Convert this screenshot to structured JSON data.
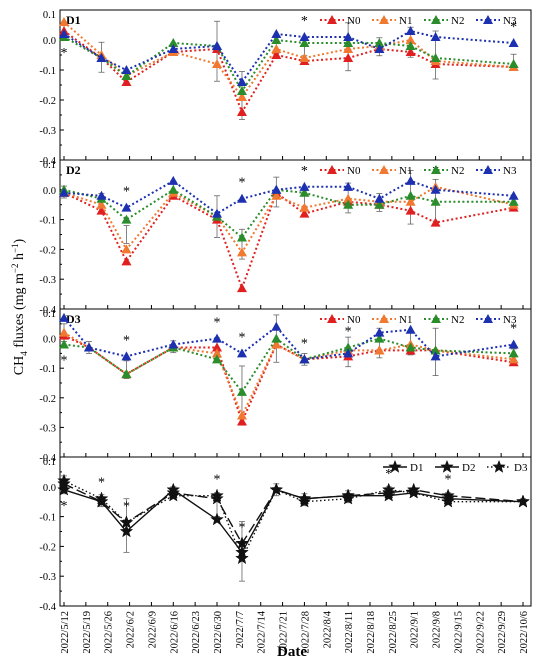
{
  "figure": {
    "ylabel": "CH$_4$ fluxes (mg m$^{-2}$ h$^{-1}$)",
    "ylabel_parts": {
      "pre": "CH",
      "sub": "4",
      "mid": " fluxes (mg m",
      "sup1": "−2",
      "mid2": " h",
      "sup2": "−1",
      "post": ")"
    },
    "xlabel": "Date",
    "dates": [
      "2022/5/12",
      "2022/5/19",
      "2022/5/26",
      "2022/6/2",
      "2022/6/9",
      "2022/6/16",
      "2022/6/23",
      "2022/6/30",
      "2022/7/7",
      "2022/7/14",
      "2022/7/21",
      "2022/7/28",
      "2022/8/4",
      "2022/8/11",
      "2022/8/18",
      "2022/8/25",
      "2022/9/1",
      "2022/9/8",
      "2022/9/15",
      "2022/9/22",
      "2022/9/29",
      "2022/10/6"
    ]
  },
  "chart_data": [
    {
      "type": "line",
      "panel": "D1",
      "ylim": [
        -0.4,
        0.1
      ],
      "yticks": [
        "0.1",
        "0.0",
        "-0.1",
        "-0.2",
        "-0.3",
        "-0.4"
      ],
      "sample_dates": [
        "2022/5/12",
        "2022/5/24",
        "2022/6/1",
        "2022/6/16",
        "2022/6/30",
        "2022/7/8",
        "2022/7/19",
        "2022/7/28",
        "2022/8/11",
        "2022/8/21",
        "2022/8/31",
        "2022/9/8",
        "2022/10/3"
      ],
      "series": [
        {
          "name": "N0",
          "color": "#e02020",
          "values": [
            0.03,
            -0.06,
            -0.14,
            -0.04,
            -0.03,
            -0.24,
            -0.05,
            -0.07,
            -0.06,
            -0.03,
            -0.04,
            -0.08,
            -0.09
          ]
        },
        {
          "name": "N1",
          "color": "#f07830",
          "values": [
            0.06,
            -0.05,
            -0.12,
            -0.04,
            -0.08,
            -0.19,
            -0.03,
            -0.06,
            -0.03,
            -0.02,
            0.0,
            -0.07,
            -0.09
          ]
        },
        {
          "name": "N2",
          "color": "#2a8c2a",
          "values": [
            0.01,
            -0.06,
            -0.12,
            -0.01,
            -0.02,
            -0.17,
            0.0,
            -0.01,
            -0.01,
            -0.01,
            -0.02,
            -0.06,
            -0.08
          ]
        },
        {
          "name": "N3",
          "color": "#1c30b0",
          "values": [
            0.02,
            -0.06,
            -0.1,
            -0.03,
            -0.02,
            -0.14,
            0.02,
            0.01,
            0.01,
            -0.03,
            0.03,
            0.01,
            -0.01
          ]
        }
      ],
      "errors": [
        0.03,
        0.05,
        0.02,
        0.02,
        0.1,
        0.08,
        0.03,
        0.02,
        0.08,
        0.03,
        0.05,
        0.08,
        0.02
      ],
      "asterisks": [
        {
          "date": "2022/5/12",
          "pos": "below"
        },
        {
          "date": "2022/7/28",
          "pos": "above"
        },
        {
          "date": "2022/10/3",
          "pos": "above"
        }
      ]
    },
    {
      "type": "line",
      "panel": "D2",
      "ylim": [
        -0.4,
        0.1
      ],
      "yticks": [
        "0.1",
        "0.0",
        "-0.1",
        "-0.2",
        "-0.3",
        "-0.4"
      ],
      "sample_dates": [
        "2022/5/12",
        "2022/5/24",
        "2022/6/1",
        "2022/6/16",
        "2022/6/30",
        "2022/7/8",
        "2022/7/19",
        "2022/7/28",
        "2022/8/11",
        "2022/8/21",
        "2022/8/31",
        "2022/9/8",
        "2022/10/3"
      ],
      "series": [
        {
          "name": "N0",
          "color": "#e02020",
          "values": [
            -0.01,
            -0.07,
            -0.24,
            -0.02,
            -0.1,
            -0.33,
            -0.01,
            -0.08,
            -0.04,
            -0.05,
            -0.07,
            -0.11,
            -0.06
          ]
        },
        {
          "name": "N1",
          "color": "#f07830",
          "values": [
            -0.01,
            -0.05,
            -0.2,
            -0.01,
            -0.09,
            -0.21,
            -0.02,
            -0.06,
            -0.03,
            -0.04,
            -0.04,
            0.01,
            -0.05
          ]
        },
        {
          "name": "N2",
          "color": "#2a8c2a",
          "values": [
            0.0,
            -0.03,
            -0.1,
            0.0,
            -0.09,
            -0.16,
            0.0,
            -0.01,
            -0.05,
            -0.05,
            -0.02,
            -0.04,
            -0.04
          ]
        },
        {
          "name": "N3",
          "color": "#1c30b0",
          "values": [
            -0.01,
            -0.02,
            -0.06,
            0.03,
            -0.08,
            -0.03,
            0.0,
            0.01,
            0.01,
            -0.03,
            0.03,
            0.0,
            -0.02
          ]
        }
      ],
      "errors": [
        0.02,
        0.03,
        0.03,
        0.03,
        0.07,
        0.05,
        0.05,
        0.02,
        0.05,
        0.03,
        0.09,
        0.07,
        0.02
      ],
      "asterisks": [
        {
          "date": "2022/6/1",
          "pos": "above"
        },
        {
          "date": "2022/7/8",
          "pos": "above"
        },
        {
          "date": "2022/7/28",
          "pos": "above"
        },
        {
          "date": "2022/9/8",
          "pos": "above"
        }
      ]
    },
    {
      "type": "line",
      "panel": "D3",
      "ylim": [
        -0.4,
        0.1
      ],
      "yticks": [
        "0.1",
        "0.0",
        "-0.1",
        "-0.2",
        "-0.3",
        "-0.4"
      ],
      "sample_dates": [
        "2022/5/12",
        "2022/5/20",
        "2022/6/1",
        "2022/6/16",
        "2022/6/30",
        "2022/7/8",
        "2022/7/19",
        "2022/7/28",
        "2022/8/11",
        "2022/8/21",
        "2022/8/31",
        "2022/9/8",
        "2022/10/3"
      ],
      "series": [
        {
          "name": "N0",
          "color": "#e02020",
          "values": [
            0.01,
            -0.03,
            -0.12,
            -0.03,
            -0.03,
            -0.28,
            -0.02,
            -0.07,
            -0.06,
            -0.04,
            -0.04,
            -0.04,
            -0.08
          ]
        },
        {
          "name": "N1",
          "color": "#f07830",
          "values": [
            0.02,
            -0.03,
            -0.12,
            -0.03,
            -0.05,
            -0.26,
            -0.02,
            -0.07,
            -0.04,
            -0.04,
            -0.02,
            -0.04,
            -0.07
          ]
        },
        {
          "name": "N2",
          "color": "#2a8c2a",
          "values": [
            -0.02,
            -0.03,
            -0.12,
            -0.03,
            -0.07,
            -0.18,
            0.0,
            -0.07,
            -0.03,
            0.0,
            -0.03,
            -0.04,
            -0.05
          ]
        },
        {
          "name": "N3",
          "color": "#1c30b0",
          "values": [
            0.07,
            -0.03,
            -0.06,
            -0.02,
            0.0,
            -0.05,
            0.04,
            -0.07,
            -0.05,
            0.02,
            0.03,
            -0.06,
            -0.02
          ]
        }
      ],
      "errors": [
        0.03,
        0.02,
        0.03,
        0.02,
        0.04,
        0.1,
        0.08,
        0.02,
        0.05,
        0.05,
        0.04,
        0.08,
        0.02
      ],
      "asterisks": [
        {
          "date": "2022/5/12",
          "pos": "below"
        },
        {
          "date": "2022/6/1",
          "pos": "above"
        },
        {
          "date": "2022/6/30",
          "pos": "above"
        },
        {
          "date": "2022/7/8",
          "pos": "above"
        },
        {
          "date": "2022/7/28",
          "pos": "above"
        },
        {
          "date": "2022/8/11",
          "pos": "above"
        },
        {
          "date": "2022/10/3",
          "pos": "above"
        }
      ]
    },
    {
      "type": "line",
      "panel": "",
      "ylim": [
        -0.4,
        0.1
      ],
      "yticks": [
        "0.1",
        "0.0",
        "-0.1",
        "-0.2",
        "-0.3",
        "-0.4"
      ],
      "sample_dates": [
        "2022/5/12",
        "2022/5/24",
        "2022/6/1",
        "2022/6/16",
        "2022/6/30",
        "2022/7/8",
        "2022/7/19",
        "2022/7/28",
        "2022/8/11",
        "2022/8/24",
        "2022/9/1",
        "2022/9/12",
        "2022/10/6"
      ],
      "series": [
        {
          "name": "D1",
          "color": "#111111",
          "dash": "10,4",
          "values": [
            0.01,
            -0.05,
            -0.12,
            -0.02,
            -0.04,
            -0.19,
            -0.01,
            -0.04,
            -0.03,
            -0.02,
            -0.01,
            -0.03,
            -0.05
          ]
        },
        {
          "name": "D2",
          "color": "#111111",
          "dash": "",
          "values": [
            -0.01,
            -0.05,
            -0.15,
            -0.01,
            -0.11,
            -0.22,
            -0.01,
            -0.04,
            -0.03,
            -0.03,
            -0.02,
            -0.04,
            -0.05
          ]
        },
        {
          "name": "D3",
          "color": "#111111",
          "dash": "1.5,2.5",
          "values": [
            0.02,
            -0.04,
            -0.12,
            -0.03,
            -0.03,
            -0.24,
            -0.01,
            -0.05,
            -0.04,
            -0.01,
            -0.02,
            -0.05,
            -0.05
          ]
        }
      ],
      "errors": [
        0.03,
        0.02,
        0.09,
        0.02,
        0.04,
        0.1,
        0.02,
        0.02,
        0.02,
        0.02,
        0.01,
        0.02,
        0.01
      ],
      "asterisks": [
        {
          "date": "2022/5/12",
          "pos": "below"
        },
        {
          "date": "2022/5/24",
          "pos": "above"
        },
        {
          "date": "2022/6/1",
          "pos": "above"
        },
        {
          "date": "2022/6/30",
          "pos": "above"
        },
        {
          "date": "2022/7/8",
          "pos": "above"
        },
        {
          "date": "2022/8/24",
          "pos": "above"
        },
        {
          "date": "2022/9/12",
          "pos": "above"
        }
      ]
    }
  ]
}
